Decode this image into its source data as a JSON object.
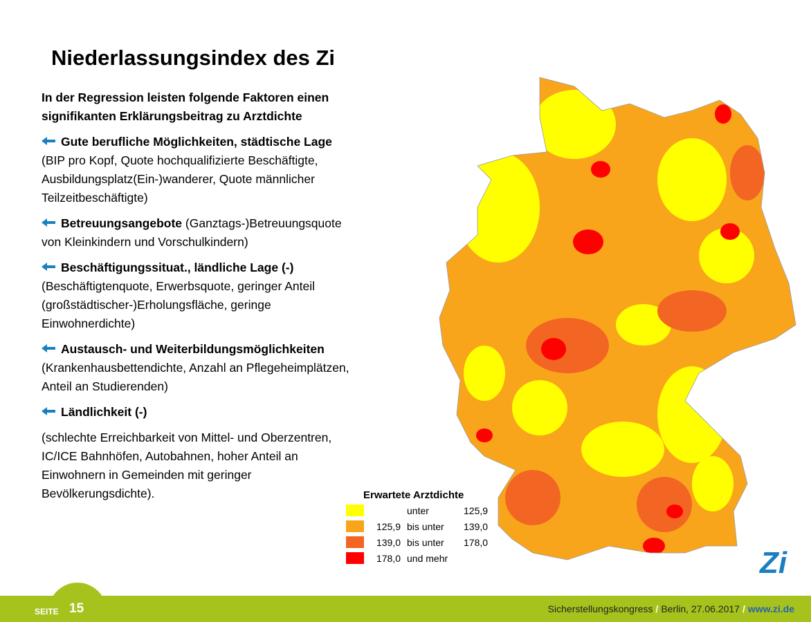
{
  "title": "Niederlassungsindex des Zi",
  "intro": "In der Regression leisten folgende Faktoren einen signifikanten Erklärungsbeitrag zu Arztdichte",
  "factors": [
    {
      "heading": "Gute berufliche Möglichkeiten, städtische Lage",
      "detail": "(BIP pro Kopf, Quote hochqualifizierte Beschäftigte, Ausbildungsplatz(Ein-)wanderer, Quote männlicher Teilzeitbeschäftigte)"
    },
    {
      "heading": "Betreuungsangebote",
      "detail": "(Ganztags-)Betreuungsquote von Kleinkindern und Vorschulkindern)"
    },
    {
      "heading": "Beschäftigungssituat., ländliche Lage (-)",
      "detail": "(Beschäftigtenquote, Erwerbsquote, geringer Anteil (großstädtischer-)Erholungsfläche, geringe Einwohnerdichte)"
    },
    {
      "heading": "Austausch- und Weiterbildungsmöglichkeiten",
      "detail": "(Krankenhausbettendichte, Anzahl an Pflegeheimplätzen, Anteil an Studierenden)"
    },
    {
      "heading": "Ländlichkeit (-)"
    }
  ],
  "note": "(schlechte Erreichbarkeit von Mittel- und Oberzentren, IC/ICE Bahnhöfen, Autobahnen, hoher Anteil an Einwohnern in Gemeinden mit geringer Bevölkerungsdichte).",
  "legend": {
    "title": "Erwartete Arztdichte",
    "rows": [
      {
        "connector": "unter",
        "to": "125,9",
        "color": "#ffff00"
      },
      {
        "from": "125,9",
        "connector": "bis unter",
        "to": "139,0",
        "color": "#f9a51c"
      },
      {
        "from": "139,0",
        "connector": "bis unter",
        "to": "178,0",
        "color": "#f26522"
      },
      {
        "from": "178,0",
        "connector": "und mehr",
        "color": "#ff0000"
      }
    ]
  },
  "logo": "Zi",
  "footer": {
    "page_label": "SEITE",
    "page_number": "15",
    "event": "Sicherstellungskongress",
    "separator": "/",
    "place_date": "Berlin, 27.06.2017",
    "url": "www.zi.de"
  }
}
